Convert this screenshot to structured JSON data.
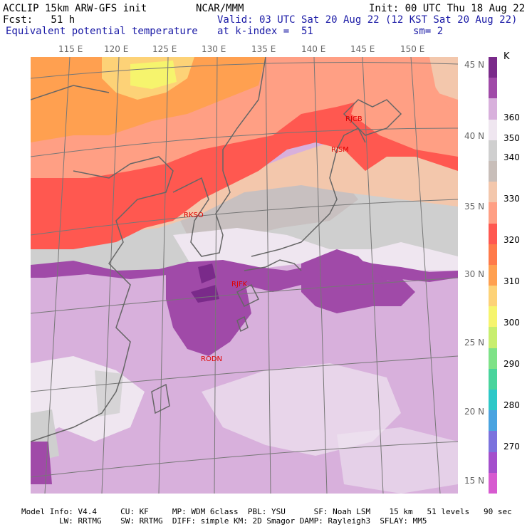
{
  "header": {
    "model": "ACCLIP 15km ARW-GFS init",
    "org": "NCAR/MMM",
    "init": "Init: 00 UTC Thu 18 Aug 22",
    "fcst": "Fcst:   51 h",
    "valid": "Valid: 03 UTC Sat 20 Aug 22 (12 KST Sat 20 Aug 22)",
    "field": "Equivalent potential temperature",
    "level": "at k-index =  51",
    "smooth": "sm= 2"
  },
  "map": {
    "lon_labels": [
      "115 E",
      "120 E",
      "125 E",
      "130 E",
      "135 E",
      "140 E",
      "145 E",
      "150 E"
    ],
    "lat_labels": [
      "45 N",
      "40 N",
      "35 N",
      "30 N",
      "25 N",
      "20 N",
      "15 N"
    ],
    "stations": [
      "RJCB",
      "RJSM",
      "RKSO",
      "RJFK",
      "RODN"
    ]
  },
  "colorbar": {
    "unit": "K",
    "ticks": [
      "360",
      "350",
      "340",
      "330",
      "320",
      "310",
      "300",
      "290",
      "280",
      "270"
    ],
    "colors": [
      "#7a2a8a",
      "#a04aa8",
      "#d8b0dc",
      "#efe6f0",
      "#cfcfcf",
      "#c8beb9",
      "#f3c7ac",
      "#ff9f84",
      "#ff5850",
      "#ff7a4a",
      "#ffa050",
      "#fdd277",
      "#f6f46d",
      "#c8ee6e",
      "#7ee287",
      "#49d49c",
      "#2ec8c8",
      "#4aa3e0",
      "#7b72dd",
      "#a44fcc",
      "#d75ad0"
    ]
  },
  "footer": {
    "line1": "Model Info: V4.4     CU: KF     MP: WDM 6class  PBL: YSU      SF: Noah LSM    15 km   51 levels   90 sec",
    "line2": "        LW: RRTMG    SW: RRTMG  DIFF: simple KM: 2D Smagor DAMP: Rayleigh3  SFLAY: MM5"
  }
}
